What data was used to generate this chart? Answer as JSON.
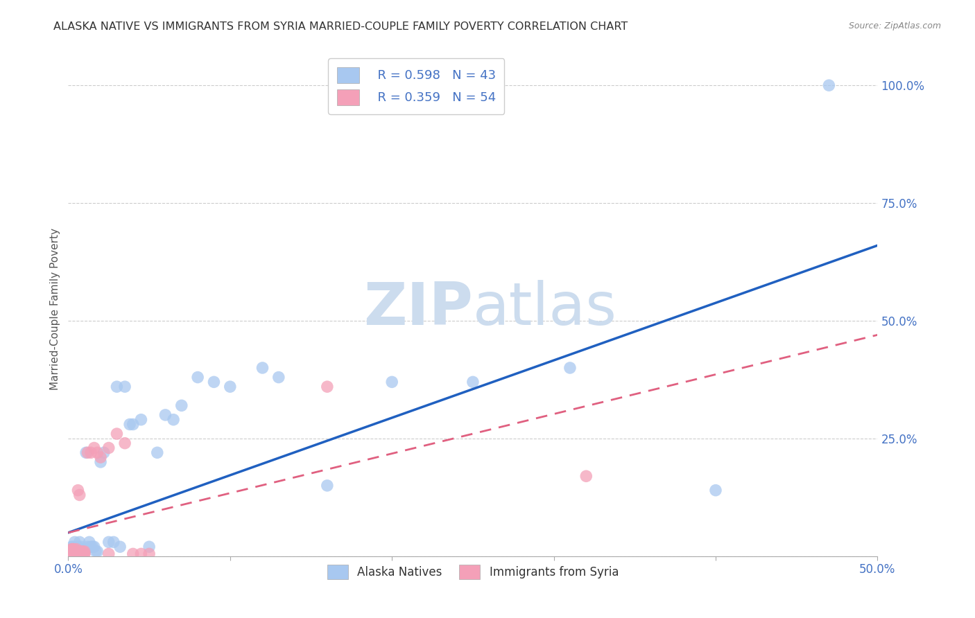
{
  "title": "ALASKA NATIVE VS IMMIGRANTS FROM SYRIA MARRIED-COUPLE FAMILY POVERTY CORRELATION CHART",
  "source": "Source: ZipAtlas.com",
  "ylabel": "Married-Couple Family Poverty",
  "xlim": [
    0,
    0.5
  ],
  "ylim": [
    0,
    1.05
  ],
  "alaska_R": 0.598,
  "alaska_N": 43,
  "syria_R": 0.359,
  "syria_N": 54,
  "alaska_color": "#a8c8f0",
  "syria_color": "#f4a0b8",
  "alaska_line_color": "#2060c0",
  "syria_line_color": "#e06080",
  "legend_label_1": "Alaska Natives",
  "legend_label_2": "Immigrants from Syria",
  "watermark_zip": "ZIP",
  "watermark_atlas": "atlas",
  "watermark_color": "#ccdcee",
  "alaska_line_x0": 0.0,
  "alaska_line_y0": 0.05,
  "alaska_line_x1": 0.5,
  "alaska_line_y1": 0.66,
  "syria_line_x0": 0.0,
  "syria_line_y0": 0.05,
  "syria_line_x1": 0.5,
  "syria_line_y1": 0.47,
  "alaska_x": [
    0.002,
    0.003,
    0.004,
    0.005,
    0.006,
    0.007,
    0.008,
    0.009,
    0.01,
    0.011,
    0.012,
    0.013,
    0.014,
    0.015,
    0.016,
    0.017,
    0.018,
    0.02,
    0.022,
    0.025,
    0.028,
    0.03,
    0.032,
    0.035,
    0.038,
    0.04,
    0.045,
    0.05,
    0.055,
    0.06,
    0.065,
    0.07,
    0.08,
    0.09,
    0.1,
    0.12,
    0.13,
    0.16,
    0.2,
    0.25,
    0.31,
    0.4,
    0.47
  ],
  "alaska_y": [
    0.02,
    0.02,
    0.03,
    0.01,
    0.02,
    0.03,
    0.02,
    0.01,
    0.01,
    0.22,
    0.02,
    0.03,
    0.02,
    0.02,
    0.02,
    0.01,
    0.01,
    0.2,
    0.22,
    0.03,
    0.03,
    0.36,
    0.02,
    0.36,
    0.28,
    0.28,
    0.29,
    0.02,
    0.22,
    0.3,
    0.29,
    0.32,
    0.38,
    0.37,
    0.36,
    0.4,
    0.38,
    0.15,
    0.37,
    0.37,
    0.4,
    0.14,
    1.0
  ],
  "syria_x": [
    0.001,
    0.001,
    0.001,
    0.002,
    0.002,
    0.002,
    0.002,
    0.002,
    0.002,
    0.002,
    0.003,
    0.003,
    0.003,
    0.003,
    0.003,
    0.003,
    0.003,
    0.004,
    0.004,
    0.004,
    0.004,
    0.004,
    0.004,
    0.005,
    0.005,
    0.005,
    0.005,
    0.006,
    0.006,
    0.006,
    0.007,
    0.007,
    0.007,
    0.008,
    0.008,
    0.009,
    0.009,
    0.01,
    0.01,
    0.01,
    0.012,
    0.014,
    0.016,
    0.018,
    0.02,
    0.025,
    0.025,
    0.03,
    0.035,
    0.04,
    0.045,
    0.05,
    0.16,
    0.32
  ],
  "syria_y": [
    0.005,
    0.005,
    0.008,
    0.005,
    0.005,
    0.008,
    0.01,
    0.005,
    0.01,
    0.015,
    0.005,
    0.005,
    0.008,
    0.01,
    0.015,
    0.005,
    0.015,
    0.005,
    0.01,
    0.005,
    0.01,
    0.005,
    0.01,
    0.005,
    0.01,
    0.01,
    0.015,
    0.005,
    0.01,
    0.14,
    0.005,
    0.01,
    0.13,
    0.005,
    0.01,
    0.005,
    0.01,
    0.005,
    0.01,
    0.005,
    0.22,
    0.22,
    0.23,
    0.22,
    0.21,
    0.005,
    0.23,
    0.26,
    0.24,
    0.005,
    0.005,
    0.005,
    0.36,
    0.17
  ]
}
